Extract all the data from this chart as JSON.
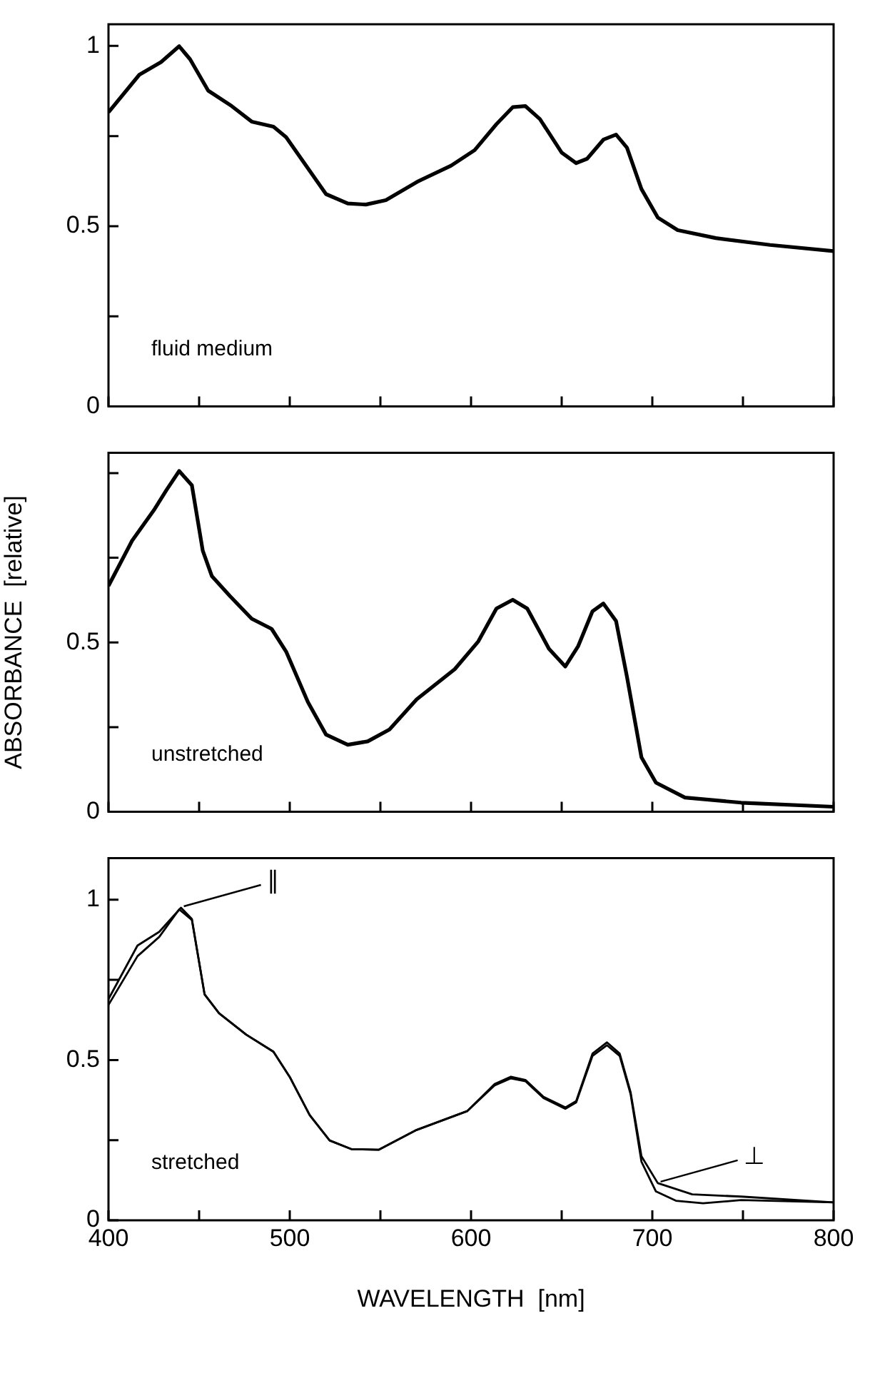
{
  "chart_data": [
    {
      "type": "line",
      "xlim": [
        400,
        800
      ],
      "xticks": [
        400,
        {
          "value": 450,
          "label": null
        },
        500,
        {
          "value": 550,
          "label": null
        },
        600,
        {
          "value": 650,
          "label": null
        },
        700,
        {
          "value": 750,
          "label": null
        },
        800
      ],
      "ylim": [
        0,
        1.06
      ],
      "yticks": [
        0,
        {
          "value": 0.25,
          "label": null
        },
        0.5,
        {
          "value": 0.75,
          "label": null
        },
        1
      ],
      "tick_labels": "y",
      "annotations": [
        "fluid medium"
      ],
      "series": [
        {
          "color": "#000000",
          "x": [
            400,
            417,
            429,
            439,
            445,
            455,
            468,
            479,
            491,
            498,
            508,
            520,
            532,
            542,
            553,
            571,
            589,
            602,
            614,
            623,
            630,
            638,
            650,
            658,
            664,
            673,
            680,
            686,
            694,
            703,
            714,
            735,
            765,
            800
          ],
          "values": [
            0.816,
            0.92,
            0.955,
            0.999,
            0.963,
            0.876,
            0.833,
            0.79,
            0.776,
            0.747,
            0.675,
            0.589,
            0.563,
            0.56,
            0.572,
            0.625,
            0.668,
            0.711,
            0.783,
            0.83,
            0.833,
            0.797,
            0.704,
            0.675,
            0.687,
            0.74,
            0.754,
            0.718,
            0.603,
            0.524,
            0.489,
            0.467,
            0.448,
            0.431
          ]
        }
      ]
    },
    {
      "type": "line",
      "xlim": [
        400,
        800
      ],
      "xticks": [
        400,
        {
          "value": 450,
          "label": null
        },
        500,
        {
          "value": 550,
          "label": null
        },
        600,
        {
          "value": 650,
          "label": null
        },
        700,
        {
          "value": 750,
          "label": null
        },
        800
      ],
      "ylim": [
        0,
        1.06
      ],
      "yticks": [
        0,
        {
          "value": 0.25,
          "label": null
        },
        0.5,
        {
          "value": 0.75,
          "label": null
        },
        {
          "value": 1,
          "label": null
        }
      ],
      "tick_labels": "y",
      "ylabel": "ABSORBANCE  [relative]",
      "annotations": [
        "unstretched"
      ],
      "series": [
        {
          "color": "#000000",
          "x": [
            400,
            413,
            425,
            432,
            439,
            446,
            452,
            457,
            467,
            479,
            490,
            498,
            510,
            520,
            532,
            543,
            555,
            570,
            591,
            604,
            614,
            623,
            631,
            643,
            652,
            659,
            667,
            673,
            680,
            686,
            694,
            702,
            718,
            749,
            800
          ],
          "values": [
            0.667,
            0.8,
            0.89,
            0.95,
            1.006,
            0.964,
            0.771,
            0.696,
            0.637,
            0.57,
            0.54,
            0.473,
            0.324,
            0.228,
            0.198,
            0.208,
            0.243,
            0.332,
            0.421,
            0.503,
            0.6,
            0.626,
            0.6,
            0.481,
            0.429,
            0.488,
            0.592,
            0.615,
            0.563,
            0.399,
            0.161,
            0.086,
            0.042,
            0.027,
            0.015
          ]
        }
      ]
    },
    {
      "type": "line",
      "xlim": [
        400,
        800
      ],
      "xticks": [
        400,
        {
          "value": 450,
          "label": null
        },
        500,
        {
          "value": 550,
          "label": null
        },
        600,
        {
          "value": 650,
          "label": null
        },
        700,
        {
          "value": 750,
          "label": null
        },
        800
      ],
      "ylim": [
        0,
        1.13
      ],
      "yticks": [
        0,
        {
          "value": 0.25,
          "label": null
        },
        0.5,
        {
          "value": 0.75,
          "label": null
        },
        1
      ],
      "xlabel": "WAVELENGTH  [nm]",
      "annotations": [
        "stretched",
        {
          "text": "∥",
          "x": 440,
          "y": 0.975
        },
        {
          "text": "⊥",
          "x": 703,
          "y": 0.116
        }
      ],
      "series": [
        {
          "color": "#000000",
          "x": [
            400,
            416,
            428,
            439,
            446,
            453,
            461,
            476,
            491,
            500,
            511,
            522,
            534,
            549,
            570,
            598,
            613,
            622,
            630,
            640,
            652,
            658,
            667,
            675,
            682,
            688,
            694,
            702,
            713,
            728,
            749,
            800
          ],
          "values": [
            0.672,
            0.824,
            0.884,
            0.97,
            0.937,
            0.705,
            0.646,
            0.579,
            0.526,
            0.447,
            0.328,
            0.249,
            0.222,
            0.22,
            0.282,
            0.341,
            0.421,
            0.443,
            0.434,
            0.381,
            0.348,
            0.368,
            0.513,
            0.546,
            0.513,
            0.394,
            0.183,
            0.09,
            0.061,
            0.053,
            0.063,
            0.056
          ]
        },
        {
          "color": "#000000",
          "x": [
            400,
            416,
            428,
            440,
            446,
            453,
            461,
            476,
            491,
            500,
            511,
            522,
            534,
            549,
            570,
            598,
            613,
            622,
            630,
            640,
            652,
            658,
            667,
            675,
            682,
            688,
            694,
            703,
            722,
            749,
            800
          ],
          "values": [
            0.69,
            0.857,
            0.9,
            0.975,
            0.94,
            0.705,
            0.646,
            0.579,
            0.526,
            0.447,
            0.328,
            0.249,
            0.222,
            0.22,
            0.282,
            0.341,
            0.425,
            0.448,
            0.438,
            0.385,
            0.352,
            0.372,
            0.52,
            0.555,
            0.52,
            0.4,
            0.2,
            0.116,
            0.081,
            0.074,
            0.056
          ]
        }
      ]
    }
  ]
}
